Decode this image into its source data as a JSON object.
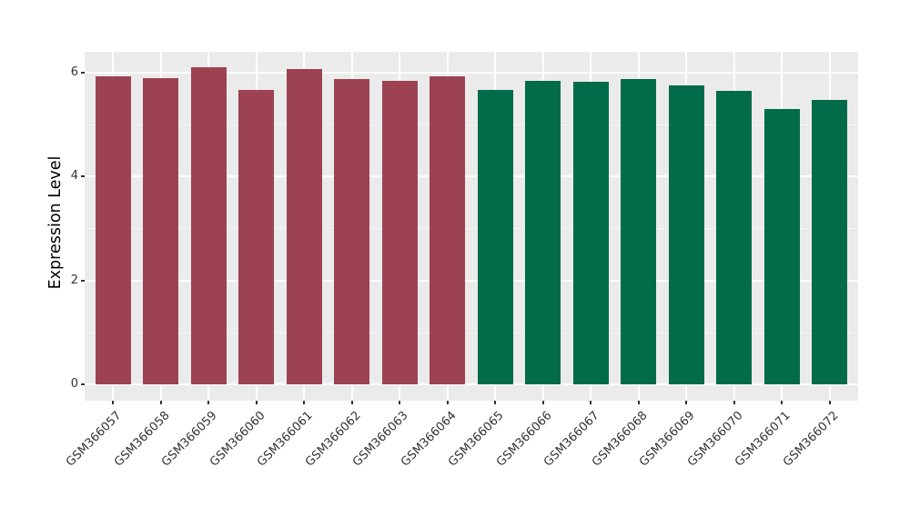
{
  "chart_data": {
    "type": "bar",
    "title": "",
    "xlabel": "",
    "ylabel": "Expression Level",
    "categories": [
      "GSM366057",
      "GSM366058",
      "GSM366059",
      "GSM366060",
      "GSM366061",
      "GSM366062",
      "GSM366063",
      "GSM366064",
      "GSM366065",
      "GSM366066",
      "GSM366067",
      "GSM366068",
      "GSM366069",
      "GSM366070",
      "GSM366071",
      "GSM366072"
    ],
    "values": [
      5.93,
      5.9,
      6.1,
      5.66,
      6.07,
      5.87,
      5.84,
      5.92,
      5.66,
      5.84,
      5.82,
      5.88,
      5.76,
      5.64,
      5.3,
      5.47
    ],
    "groups": [
      1,
      1,
      1,
      1,
      1,
      1,
      1,
      1,
      2,
      2,
      2,
      2,
      2,
      2,
      2,
      2
    ],
    "group_colors": {
      "1": "#9D4252",
      "2": "#016B4A"
    },
    "y_ticks": [
      0,
      2,
      4,
      6
    ],
    "y_minor_ticks": [
      1,
      3,
      5
    ],
    "ylim": [
      -0.31,
      6.41
    ],
    "bar_width_fraction": 0.75,
    "grid": true,
    "legend_position": "none",
    "panel_background": "#EBEBEB",
    "grid_color": "#FFFFFF",
    "tick_label_color": "#333333"
  }
}
